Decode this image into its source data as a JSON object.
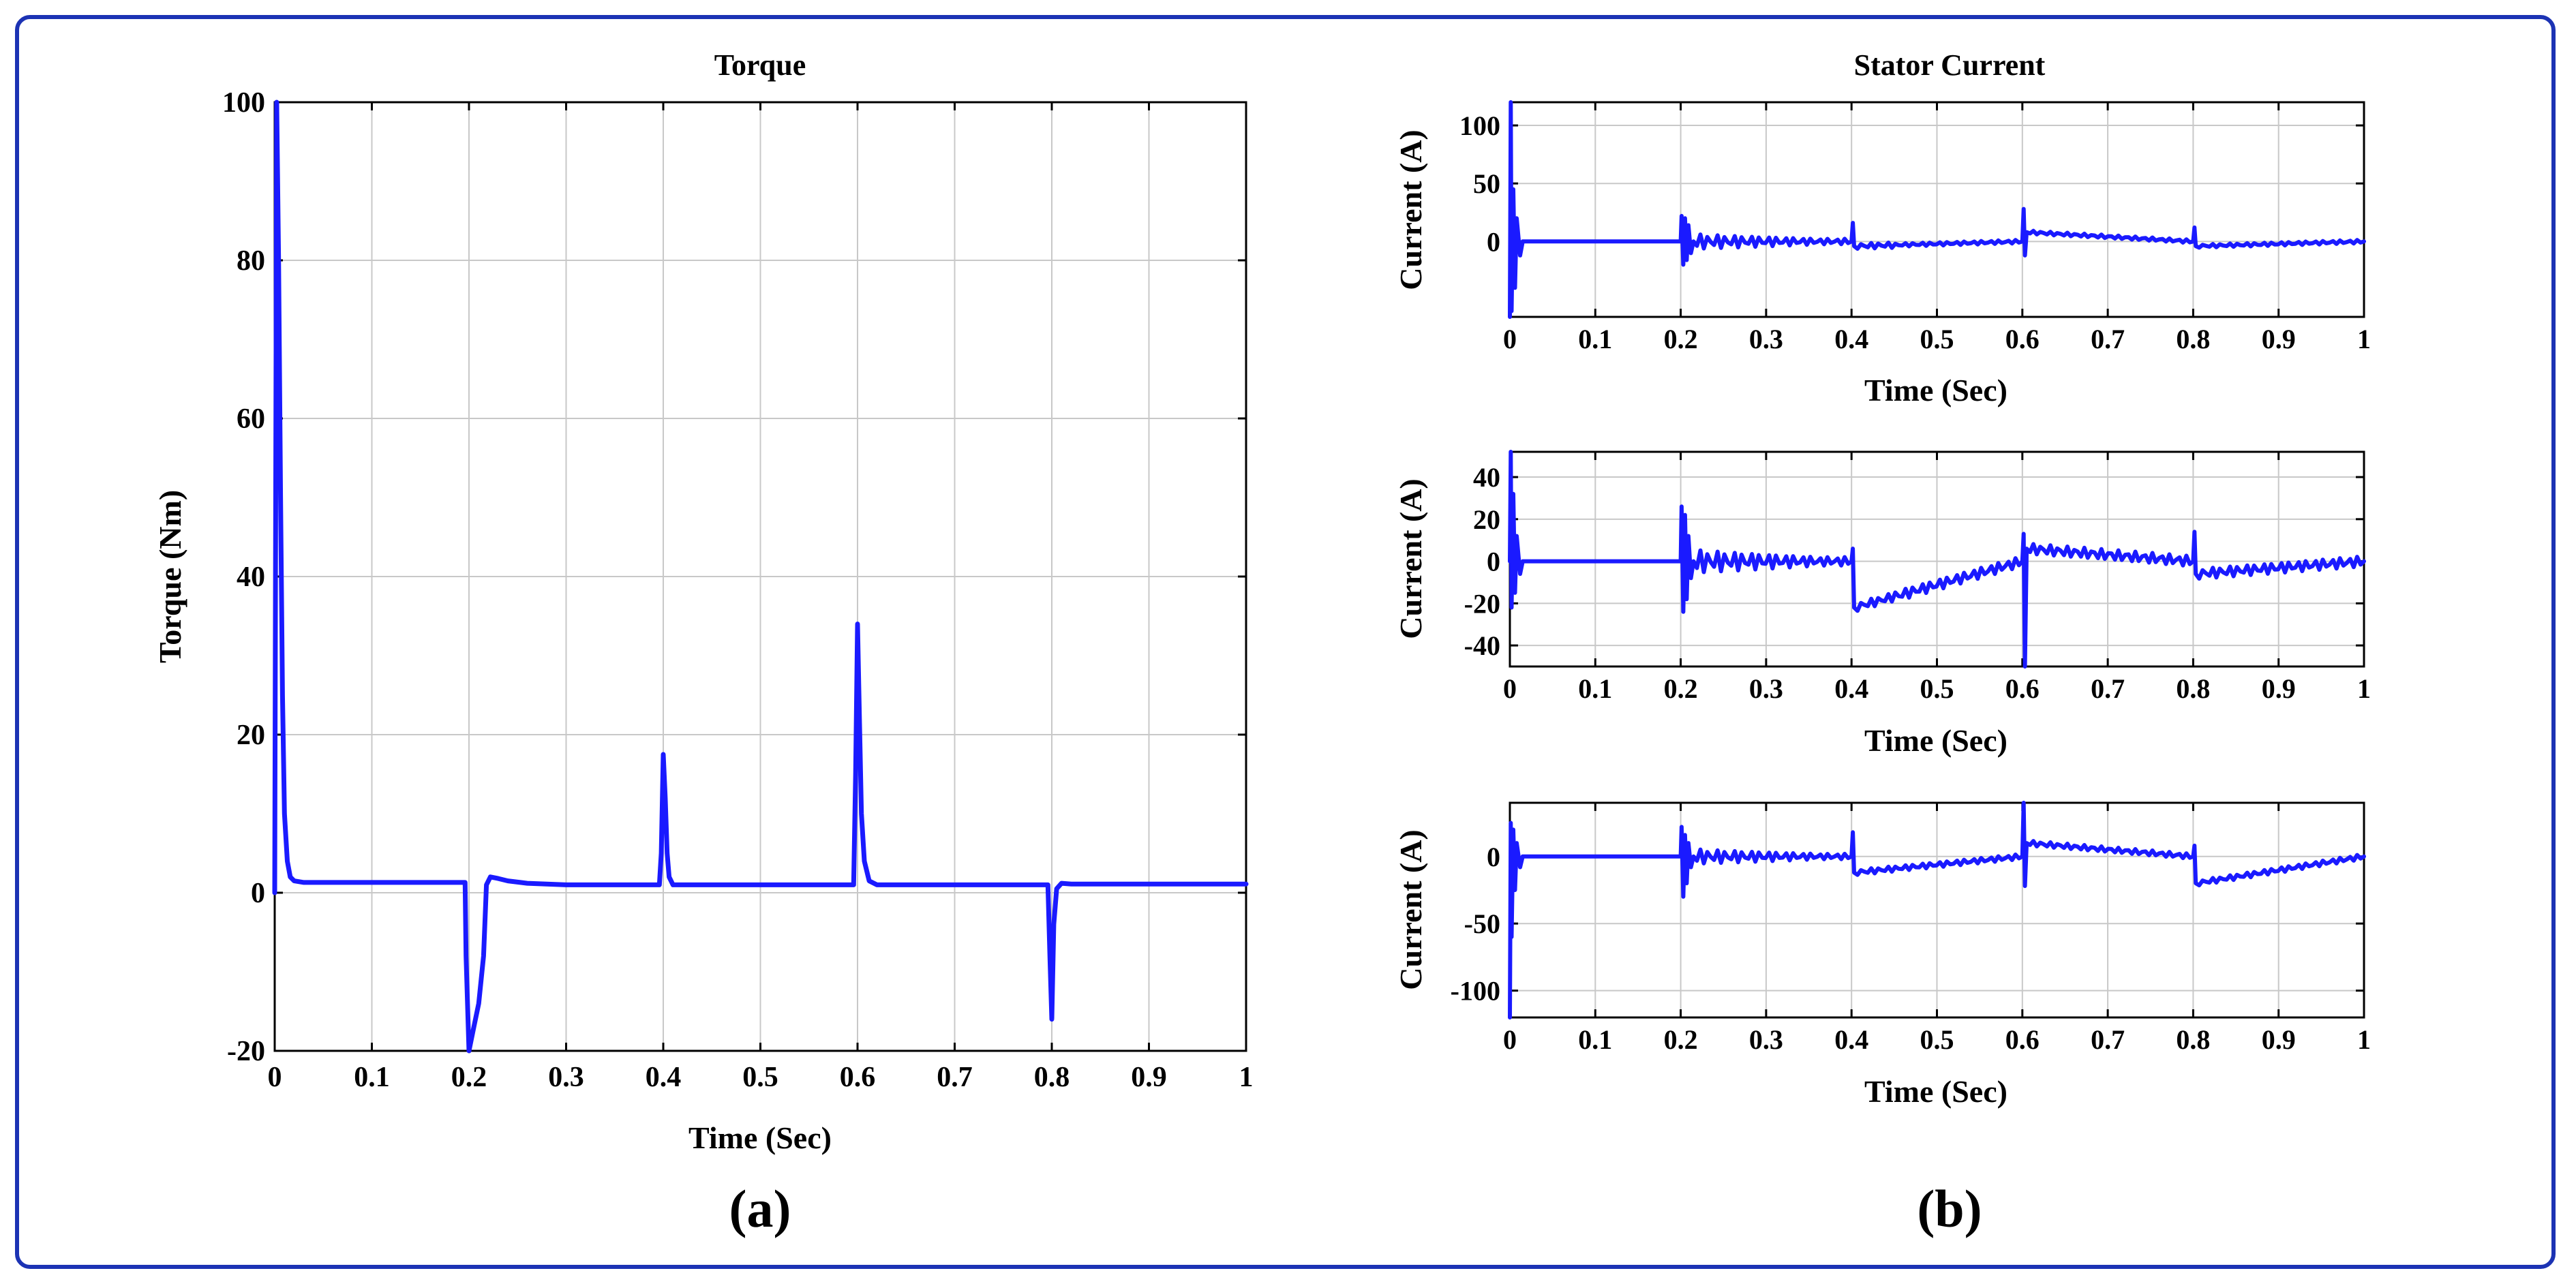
{
  "colors": {
    "frame": "#1c33b4",
    "trace": "#1a1aff"
  },
  "panel_labels": {
    "a": "(a)",
    "b": "(b)"
  },
  "chart_data": [
    {
      "type": "line",
      "title": "Torque",
      "xlabel": "Time (Sec)",
      "ylabel": "Torque (Nm)",
      "xlim": [
        0,
        1
      ],
      "ylim": [
        -20,
        100
      ],
      "xticks": [
        "0",
        "0.1",
        "0.2",
        "0.3",
        "0.4",
        "0.5",
        "0.6",
        "0.7",
        "0.8",
        "0.9",
        "1"
      ],
      "yticks": [
        "-20",
        "0",
        "20",
        "40",
        "60",
        "80",
        "100"
      ],
      "grid": true,
      "series": [
        {
          "x": [
            0,
            0.002,
            0.004,
            0.006,
            0.008,
            0.01,
            0.013,
            0.016,
            0.02,
            0.03,
            0.1,
            0.196,
            0.197,
            0.2,
            0.205,
            0.21,
            0.215,
            0.218,
            0.222,
            0.23,
            0.24,
            0.26,
            0.3,
            0.396,
            0.398,
            0.4,
            0.402,
            0.404,
            0.406,
            0.41,
            0.5,
            0.596,
            0.598,
            0.6,
            0.602,
            0.604,
            0.607,
            0.612,
            0.62,
            0.7,
            0.796,
            0.798,
            0.8,
            0.802,
            0.805,
            0.81,
            0.82,
            0.9,
            1
          ],
          "y": [
            0,
            100,
            80,
            50,
            25,
            10,
            4,
            2,
            1.5,
            1.3,
            1.3,
            1.3,
            -8,
            -20,
            -17,
            -14,
            -8,
            1,
            2,
            1.8,
            1.5,
            1.2,
            1,
            1,
            5,
            17.5,
            12,
            5,
            2,
            1,
            1,
            1,
            15,
            34,
            22,
            10,
            4,
            1.5,
            1,
            1,
            1,
            -8,
            -16,
            -4,
            0.5,
            1.2,
            1.1,
            1.1,
            1.1
          ]
        }
      ]
    },
    {
      "type": "line",
      "title": "Stator Current",
      "xlabel": "Time (Sec)",
      "ylabel": "Current (A)",
      "xlim": [
        0,
        1
      ],
      "ylim": [
        -65,
        120
      ],
      "xticks": [
        "0",
        "0.1",
        "0.2",
        "0.3",
        "0.4",
        "0.5",
        "0.6",
        "0.7",
        "0.8",
        "0.9",
        "1"
      ],
      "yticks": [
        "100",
        "50",
        "0"
      ],
      "grid": true,
      "series": [
        {
          "x": [
            0,
            0.001,
            0.002,
            0.004,
            0.006,
            0.008,
            0.012,
            0.015,
            0.2,
            0.201,
            0.203,
            0.205,
            0.207,
            0.209,
            0.212,
            0.215,
            0.4,
            0.4015,
            0.403,
            0.6,
            0.6015,
            0.603,
            0.605,
            0.8,
            0.8015,
            0.803,
            1
          ],
          "y": [
            -65,
            120,
            -60,
            45,
            -40,
            20,
            -12,
            0,
            0,
            22,
            -20,
            20,
            -16,
            14,
            -10,
            0,
            0,
            16,
            -4,
            0,
            28,
            -12,
            8,
            0,
            12,
            -4,
            0
          ],
          "ripple": [
            [
              0.2,
              0.45,
              7
            ],
            [
              0.45,
              1,
              1.5
            ]
          ]
        }
      ]
    },
    {
      "type": "line",
      "title": "",
      "xlabel": "Time (Sec)",
      "ylabel": "Current (A)",
      "xlim": [
        0,
        1
      ],
      "ylim": [
        -50,
        52
      ],
      "xticks": [
        "0",
        "0.1",
        "0.2",
        "0.3",
        "0.4",
        "0.5",
        "0.6",
        "0.7",
        "0.8",
        "0.9",
        "1"
      ],
      "yticks": [
        "40",
        "20",
        "0",
        "-20",
        "-40"
      ],
      "grid": true,
      "series": [
        {
          "x": [
            0,
            0.001,
            0.002,
            0.004,
            0.006,
            0.008,
            0.012,
            0.015,
            0.2,
            0.201,
            0.203,
            0.205,
            0.207,
            0.209,
            0.212,
            0.215,
            0.4,
            0.4015,
            0.403,
            0.6,
            0.6015,
            0.603,
            0.605,
            0.8,
            0.8015,
            0.803,
            1
          ],
          "y": [
            0,
            52,
            -22,
            32,
            -15,
            12,
            -6,
            0,
            0,
            26,
            -24,
            22,
            -18,
            12,
            -8,
            0,
            0,
            6,
            -22,
            0,
            13,
            -50,
            6,
            0,
            14,
            -6,
            0
          ],
          "ripple": [
            [
              0.2,
              0.45,
              6
            ],
            [
              0.45,
              1,
              2.5
            ]
          ]
        }
      ]
    },
    {
      "type": "line",
      "title": "",
      "xlabel": "Time (Sec)",
      "ylabel": "Current (A)",
      "xlim": [
        0,
        1
      ],
      "ylim": [
        -120,
        40
      ],
      "xticks": [
        "0",
        "0.1",
        "0.2",
        "0.3",
        "0.4",
        "0.5",
        "0.6",
        "0.7",
        "0.8",
        "0.9",
        "1"
      ],
      "yticks": [
        "0",
        "-50",
        "-100"
      ],
      "grid": true,
      "series": [
        {
          "x": [
            0,
            0.001,
            0.002,
            0.004,
            0.006,
            0.008,
            0.012,
            0.015,
            0.2,
            0.201,
            0.203,
            0.205,
            0.207,
            0.209,
            0.212,
            0.215,
            0.4,
            0.4015,
            0.403,
            0.6,
            0.6015,
            0.603,
            0.605,
            0.8,
            0.8015,
            0.803,
            1
          ],
          "y": [
            -120,
            25,
            -60,
            20,
            -25,
            10,
            -8,
            0,
            0,
            22,
            -30,
            16,
            -20,
            10,
            -8,
            0,
            0,
            18,
            -12,
            0,
            40,
            -22,
            10,
            0,
            8,
            -20,
            0
          ],
          "ripple": [
            [
              0.2,
              0.45,
              6
            ],
            [
              0.45,
              1,
              2
            ]
          ]
        }
      ]
    }
  ]
}
